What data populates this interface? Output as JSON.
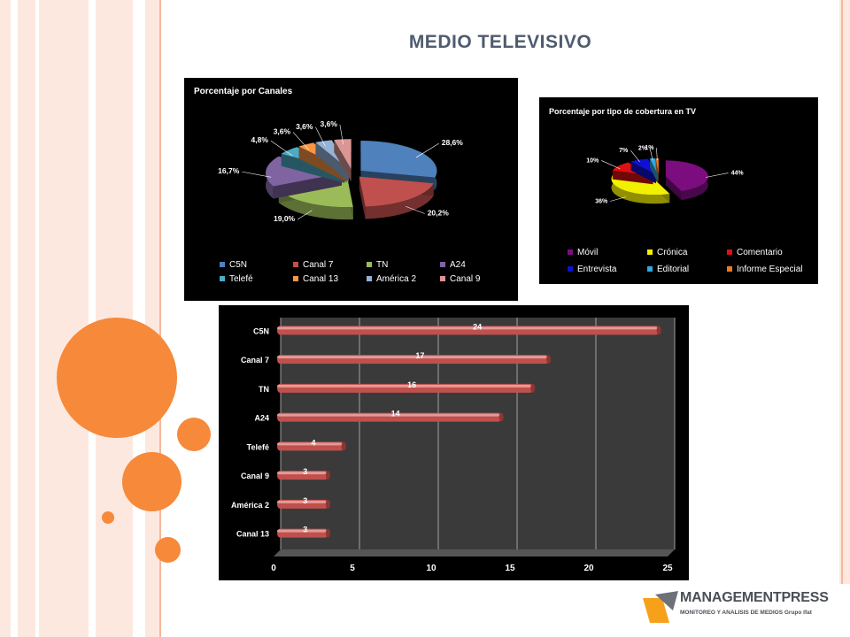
{
  "slide": {
    "title": "MEDIO TELEVISIVO",
    "logo_name": "MANAGEMENTPRESS",
    "logo_subtitle": "MONITOREO Y ANALISIS DE MEDIOS Grupo Ifat"
  },
  "colors": {
    "accent_orange": "#f6893a",
    "stripe_light": "#fde6dc",
    "bar_red": "#c0504d"
  },
  "chart_data": [
    {
      "type": "pie",
      "title": "Porcentaje por Canales",
      "labels": [
        "C5N",
        "Canal 7",
        "TN",
        "A24",
        "Telefé",
        "Canal 13",
        "América 2",
        "Canal 9"
      ],
      "values": [
        28.6,
        20.2,
        19.0,
        16.7,
        4.8,
        3.6,
        3.6,
        3.6
      ],
      "value_labels": [
        "28,6%",
        "20,2%",
        "19,0%",
        "16,7%",
        "4,8%",
        "3,6%",
        "3,6%",
        "3,6%"
      ],
      "colors": [
        "#4f81bd",
        "#c0504d",
        "#9bbb59",
        "#8064a2",
        "#4bacc6",
        "#f79646",
        "#95b3d7",
        "#d99694"
      ],
      "legend": "bottom"
    },
    {
      "type": "pie",
      "title": "Porcentaje por tipo de cobertura en TV",
      "labels": [
        "Móvil",
        "Crónica",
        "Comentario",
        "Entrevista",
        "Editorial",
        "Informe Especial"
      ],
      "values": [
        44,
        36,
        10,
        7,
        2,
        1
      ],
      "value_labels": [
        "44%",
        "36%",
        "10%",
        "7%",
        "2%",
        "1%"
      ],
      "colors": [
        "#7b0d7e",
        "#f0f000",
        "#e01010",
        "#1010d0",
        "#30a8e0",
        "#f07820"
      ],
      "legend": "bottom"
    },
    {
      "type": "bar",
      "orientation": "horizontal",
      "categories": [
        "C5N",
        "Canal 7",
        "TN",
        "A24",
        "Telefé",
        "Canal 9",
        "América 2",
        "Canal 13"
      ],
      "values": [
        24,
        17,
        16,
        14,
        4,
        3,
        3,
        3
      ],
      "value_labels": [
        "24",
        "17",
        "16",
        "14",
        "4",
        "3",
        "3",
        "3"
      ],
      "xlim": [
        0,
        25
      ],
      "xticks": [
        "0",
        "5",
        "10",
        "15",
        "20",
        "25"
      ],
      "grid": true,
      "legend": "none"
    }
  ]
}
